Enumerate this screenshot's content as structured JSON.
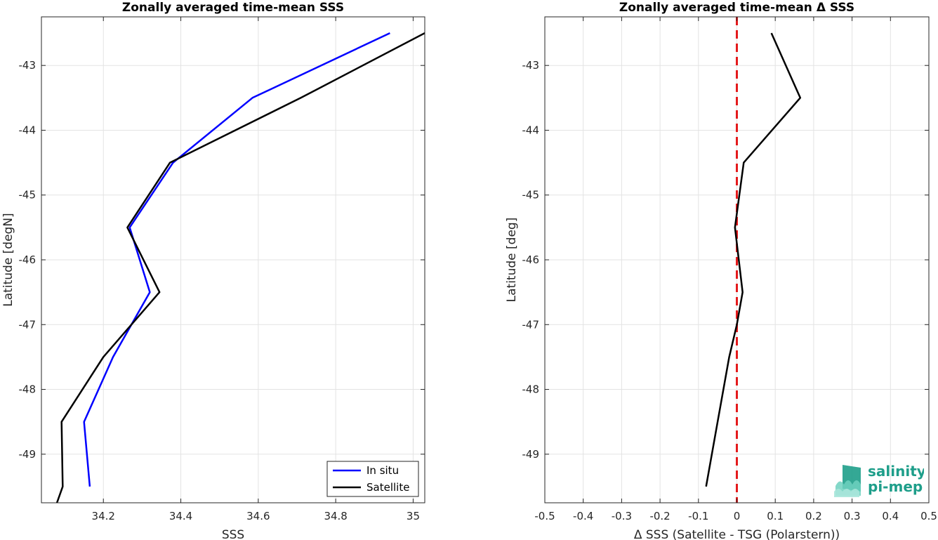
{
  "chart_data": [
    {
      "type": "line",
      "title": "Zonally averaged time-mean SSS",
      "xlabel": "SSS",
      "ylabel": "Latitude [degN]",
      "xlim": [
        34.04,
        35.03
      ],
      "ylim": [
        -49.75,
        -42.25
      ],
      "xticks": [
        34.2,
        34.4,
        34.6,
        34.8,
        35
      ],
      "yticks": [
        -49,
        -48,
        -47,
        -46,
        -45,
        -44,
        -43
      ],
      "xtick_labels": [
        "34.2",
        "34.4",
        "34.6",
        "34.8",
        "35"
      ],
      "ytick_labels": [
        "-49",
        "-48",
        "-47",
        "-46",
        "-45",
        "-44",
        "-43"
      ],
      "grid": true,
      "legend": "bottom-right",
      "series": [
        {
          "name": "In situ",
          "color": "#0000ff",
          "x": [
            34.165,
            34.15,
            34.225,
            34.32,
            34.268,
            34.38,
            34.585,
            34.94
          ],
          "y": [
            -49.5,
            -48.5,
            -47.5,
            -46.5,
            -45.5,
            -44.5,
            -43.5,
            -42.5
          ]
        },
        {
          "name": "Satellite",
          "color": "#000000",
          "x": [
            34.08,
            34.095,
            34.092,
            34.2,
            34.345,
            34.262,
            34.372,
            34.71,
            35.03
          ],
          "y": [
            -49.75,
            -49.5,
            -48.5,
            -47.5,
            -46.5,
            -45.5,
            -44.5,
            -43.5,
            -42.5
          ]
        }
      ]
    },
    {
      "type": "line",
      "title": "Zonally averaged time-mean Δ SSS",
      "xlabel": "Δ SSS (Satellite - TSG (Polarstern))",
      "ylabel": "Latitude [deg]",
      "xlim": [
        -0.5,
        0.5
      ],
      "ylim": [
        -49.75,
        -42.25
      ],
      "xticks": [
        -0.5,
        -0.4,
        -0.3,
        -0.2,
        -0.1,
        0,
        0.1,
        0.2,
        0.3,
        0.4,
        0.5
      ],
      "yticks": [
        -49,
        -48,
        -47,
        -46,
        -45,
        -44,
        -43
      ],
      "xtick_labels": [
        "-0.5",
        "-0.4",
        "-0.3",
        "-0.2",
        "-0.1",
        "0",
        "0.1",
        "0.2",
        "0.3",
        "0.4",
        "0.5"
      ],
      "ytick_labels": [
        "-49",
        "-48",
        "-47",
        "-46",
        "-45",
        "-44",
        "-43"
      ],
      "grid": true,
      "reference_line": {
        "x": 0,
        "color": "#e41a1c",
        "style": "dashed"
      },
      "series": [
        {
          "color": "#000000",
          "x": [
            -0.08,
            -0.05,
            -0.02,
            0.0,
            0.015,
            -0.005,
            0.018,
            0.165,
            0.09
          ],
          "y": [
            -49.5,
            -48.5,
            -47.5,
            -47.0,
            -46.5,
            -45.5,
            -44.5,
            -43.5,
            -42.5
          ]
        }
      ]
    }
  ],
  "logo": {
    "line1": "salinity",
    "line2": "pi-mep",
    "color": "#1e9e8a"
  }
}
